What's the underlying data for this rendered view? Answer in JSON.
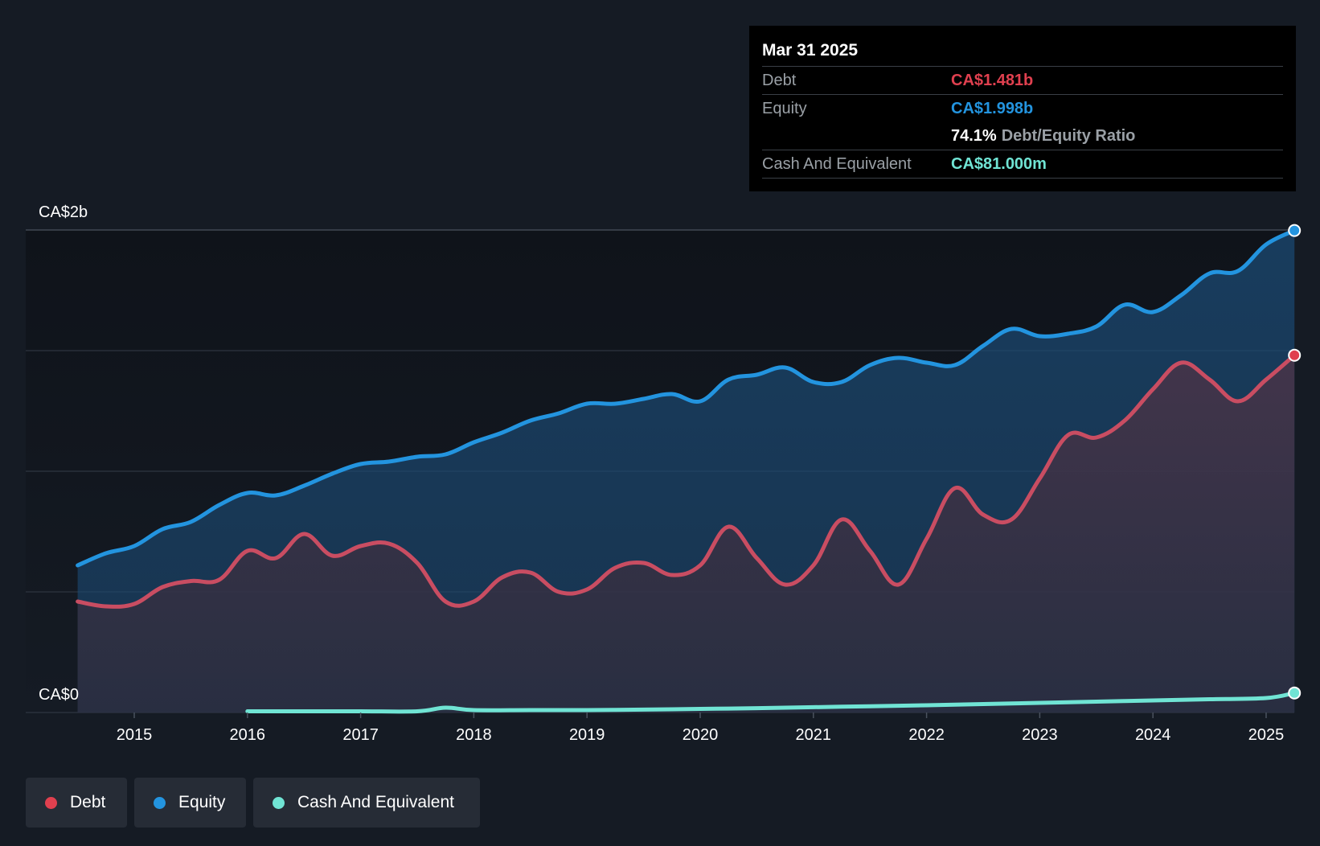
{
  "tooltip": {
    "date": "Mar 31 2025",
    "debt_label": "Debt",
    "debt_value": "CA$1.481b",
    "equity_label": "Equity",
    "equity_value": "CA$1.998b",
    "ratio_value": "74.1%",
    "ratio_label": "Debt/Equity Ratio",
    "cash_label": "Cash And Equivalent",
    "cash_value": "CA$81.000m"
  },
  "legend": {
    "debt": "Debt",
    "equity": "Equity",
    "cash": "Cash And Equivalent"
  },
  "colors": {
    "debt": "#e0404f",
    "equity": "#2394df",
    "cash": "#70e4d4",
    "background": "#151b24"
  },
  "chart_data": {
    "type": "area",
    "title": "",
    "xlabel": "",
    "ylabel": "",
    "y_unit": "CA$ billions",
    "ylim": [
      0,
      2.0
    ],
    "xlim": [
      2014.5,
      2025.25
    ],
    "y_tick_labels": [
      {
        "value": 0,
        "label": "CA$0"
      },
      {
        "value": 2.0,
        "label": "CA$2b"
      }
    ],
    "gridlines": [
      0,
      0.5,
      1.0,
      1.5,
      2.0
    ],
    "x_ticks": [
      2015,
      2016,
      2017,
      2018,
      2019,
      2020,
      2021,
      2022,
      2023,
      2024,
      2025
    ],
    "series": [
      {
        "name": "Equity",
        "key": "equity",
        "points": [
          [
            2014.5,
            0.61
          ],
          [
            2014.75,
            0.66
          ],
          [
            2015.0,
            0.69
          ],
          [
            2015.25,
            0.76
          ],
          [
            2015.5,
            0.79
          ],
          [
            2015.75,
            0.86
          ],
          [
            2016.0,
            0.91
          ],
          [
            2016.25,
            0.9
          ],
          [
            2016.5,
            0.94
          ],
          [
            2016.75,
            0.99
          ],
          [
            2017.0,
            1.03
          ],
          [
            2017.25,
            1.04
          ],
          [
            2017.5,
            1.06
          ],
          [
            2017.75,
            1.07
          ],
          [
            2018.0,
            1.12
          ],
          [
            2018.25,
            1.16
          ],
          [
            2018.5,
            1.21
          ],
          [
            2018.75,
            1.24
          ],
          [
            2019.0,
            1.28
          ],
          [
            2019.25,
            1.28
          ],
          [
            2019.5,
            1.3
          ],
          [
            2019.75,
            1.32
          ],
          [
            2020.0,
            1.29
          ],
          [
            2020.25,
            1.38
          ],
          [
            2020.5,
            1.4
          ],
          [
            2020.75,
            1.43
          ],
          [
            2021.0,
            1.37
          ],
          [
            2021.25,
            1.37
          ],
          [
            2021.5,
            1.44
          ],
          [
            2021.75,
            1.47
          ],
          [
            2022.0,
            1.45
          ],
          [
            2022.25,
            1.44
          ],
          [
            2022.5,
            1.52
          ],
          [
            2022.75,
            1.59
          ],
          [
            2023.0,
            1.56
          ],
          [
            2023.25,
            1.57
          ],
          [
            2023.5,
            1.6
          ],
          [
            2023.75,
            1.69
          ],
          [
            2024.0,
            1.66
          ],
          [
            2024.25,
            1.73
          ],
          [
            2024.5,
            1.82
          ],
          [
            2024.75,
            1.83
          ],
          [
            2025.0,
            1.94
          ],
          [
            2025.25,
            1.998
          ]
        ]
      },
      {
        "name": "Debt",
        "key": "debt",
        "points": [
          [
            2014.5,
            0.46
          ],
          [
            2014.75,
            0.44
          ],
          [
            2015.0,
            0.45
          ],
          [
            2015.25,
            0.52
          ],
          [
            2015.5,
            0.545
          ],
          [
            2015.75,
            0.55
          ],
          [
            2016.0,
            0.67
          ],
          [
            2016.25,
            0.64
          ],
          [
            2016.5,
            0.74
          ],
          [
            2016.75,
            0.65
          ],
          [
            2017.0,
            0.69
          ],
          [
            2017.25,
            0.7
          ],
          [
            2017.5,
            0.62
          ],
          [
            2017.75,
            0.46
          ],
          [
            2018.0,
            0.46
          ],
          [
            2018.25,
            0.56
          ],
          [
            2018.5,
            0.58
          ],
          [
            2018.75,
            0.5
          ],
          [
            2019.0,
            0.51
          ],
          [
            2019.25,
            0.6
          ],
          [
            2019.5,
            0.62
          ],
          [
            2019.75,
            0.57
          ],
          [
            2020.0,
            0.61
          ],
          [
            2020.25,
            0.77
          ],
          [
            2020.5,
            0.64
          ],
          [
            2020.75,
            0.53
          ],
          [
            2021.0,
            0.61
          ],
          [
            2021.25,
            0.8
          ],
          [
            2021.5,
            0.67
          ],
          [
            2021.75,
            0.53
          ],
          [
            2022.0,
            0.72
          ],
          [
            2022.25,
            0.93
          ],
          [
            2022.5,
            0.82
          ],
          [
            2022.75,
            0.8
          ],
          [
            2023.0,
            0.97
          ],
          [
            2023.25,
            1.15
          ],
          [
            2023.5,
            1.14
          ],
          [
            2023.75,
            1.21
          ],
          [
            2024.0,
            1.34
          ],
          [
            2024.25,
            1.45
          ],
          [
            2024.5,
            1.38
          ],
          [
            2024.75,
            1.29
          ],
          [
            2025.0,
            1.38
          ],
          [
            2025.25,
            1.481
          ]
        ]
      },
      {
        "name": "Cash And Equivalent",
        "key": "cash",
        "points": [
          [
            2016.0,
            0.005
          ],
          [
            2016.5,
            0.005
          ],
          [
            2017.0,
            0.005
          ],
          [
            2017.5,
            0.005
          ],
          [
            2017.75,
            0.02
          ],
          [
            2018.0,
            0.01
          ],
          [
            2018.5,
            0.01
          ],
          [
            2019.0,
            0.01
          ],
          [
            2019.5,
            0.012
          ],
          [
            2020.0,
            0.015
          ],
          [
            2020.5,
            0.018
          ],
          [
            2021.0,
            0.022
          ],
          [
            2021.5,
            0.026
          ],
          [
            2022.0,
            0.03
          ],
          [
            2022.5,
            0.035
          ],
          [
            2023.0,
            0.04
          ],
          [
            2023.5,
            0.045
          ],
          [
            2024.0,
            0.05
          ],
          [
            2024.5,
            0.055
          ],
          [
            2025.0,
            0.06
          ],
          [
            2025.25,
            0.081
          ]
        ]
      }
    ]
  }
}
